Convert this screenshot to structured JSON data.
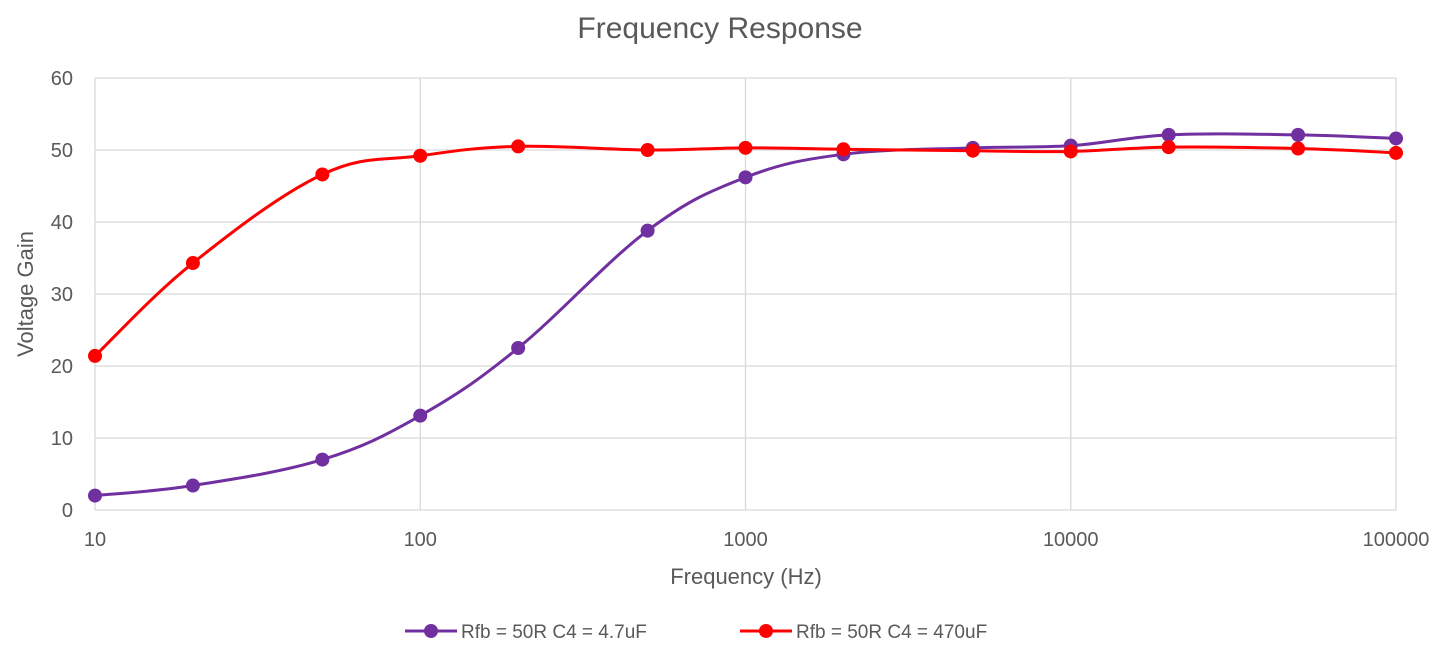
{
  "chart_data": {
    "type": "line",
    "title": "Frequency Response",
    "xlabel": "Frequency (Hz)",
    "ylabel": "Voltage Gain",
    "x_scale": "log",
    "xlim": [
      10,
      100000
    ],
    "ylim": [
      0,
      60
    ],
    "x_ticks": [
      "10",
      "100",
      "1000",
      "10000",
      "100000"
    ],
    "y_ticks": [
      "0",
      "10",
      "20",
      "30",
      "40",
      "50",
      "60"
    ],
    "grid": true,
    "legend_position": "bottom",
    "smooth": true,
    "series": [
      {
        "name": "Rfb = 50R C4 = 4.7uF",
        "color": "#7030a0",
        "x": [
          10,
          20,
          50,
          100,
          200,
          500,
          1000,
          2000,
          5000,
          10000,
          20000,
          50000,
          100000
        ],
        "y": [
          2.0,
          3.4,
          7.0,
          13.1,
          22.5,
          38.8,
          46.2,
          49.4,
          50.3,
          50.6,
          52.1,
          52.1,
          51.6
        ]
      },
      {
        "name": "Rfb = 50R C4 = 470uF",
        "color": "#ff0000",
        "x": [
          10,
          20,
          50,
          100,
          200,
          500,
          1000,
          2000,
          5000,
          10000,
          20000,
          50000,
          100000
        ],
        "y": [
          21.4,
          34.3,
          46.6,
          49.2,
          50.5,
          50.0,
          50.3,
          50.1,
          49.9,
          49.8,
          50.4,
          50.2,
          49.6
        ]
      }
    ]
  }
}
